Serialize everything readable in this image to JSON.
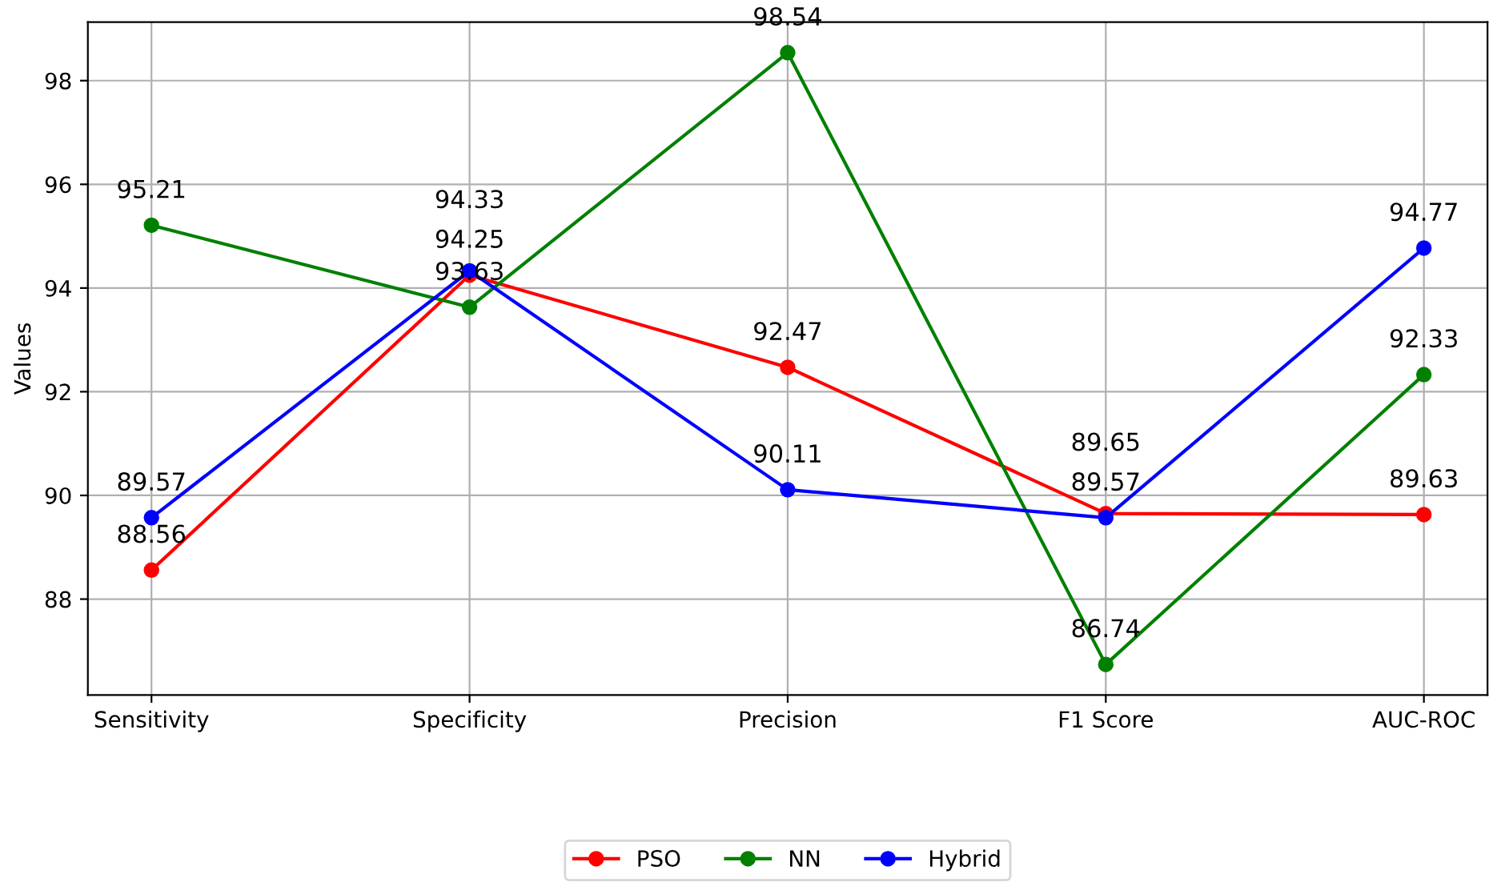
{
  "chart_data": {
    "type": "line",
    "ylabel": "Values",
    "categories": [
      "Sensitivity",
      "Specificity",
      "Precision",
      "F1 Score",
      "AUC-ROC"
    ],
    "series": [
      {
        "name": "PSO",
        "color": "#ff0000",
        "values": [
          88.56,
          94.25,
          92.47,
          89.65,
          89.63
        ]
      },
      {
        "name": "NN",
        "color": "#008000",
        "values": [
          95.21,
          93.63,
          98.54,
          86.74,
          92.33
        ]
      },
      {
        "name": "Hybrid",
        "color": "#0000ff",
        "values": [
          89.57,
          94.33,
          90.11,
          89.57,
          94.77
        ]
      }
    ],
    "ylim": [
      86.15,
      99.13
    ],
    "yticks": [
      88,
      90,
      92,
      94,
      96,
      98
    ],
    "grid": true,
    "legend": "bottom",
    "marker": "circle",
    "line_style": "solid",
    "data_labels": true
  }
}
